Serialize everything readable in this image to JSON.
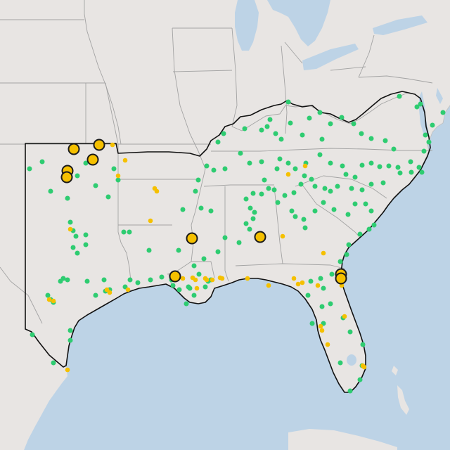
{
  "map": {
    "colors": {
      "land": "#e8e5e3",
      "water": "#bdd3e6",
      "land_far": "#ecebe9",
      "state_lines": "#a3a3a3",
      "region_outline": "#111111",
      "green_marker": "#2ecc71",
      "yellow_marker": "#f5c000",
      "marker_outline": "#1a1a1a"
    },
    "legend_visible": false,
    "markers": {
      "large_yellow_count": 10,
      "small_yellow_count": 40,
      "green_count": 200
    }
  }
}
